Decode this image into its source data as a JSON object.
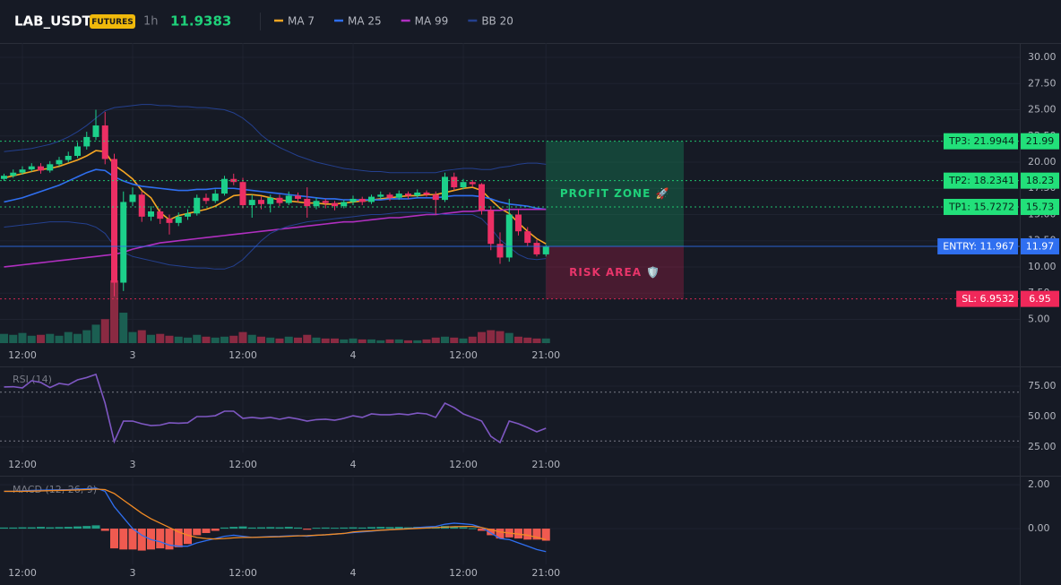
{
  "header": {
    "symbol": "LAB_USDT",
    "badge": "FUTURES",
    "interval": "1h",
    "price": 11.9383
  },
  "chart_data": [
    {
      "type": "candlestick",
      "categories": [
        null,
        null,
        "12:00",
        null,
        null,
        null,
        null,
        null,
        null,
        null,
        null,
        null,
        null,
        null,
        "3",
        null,
        null,
        null,
        null,
        null,
        null,
        null,
        null,
        null,
        null,
        null,
        "12:00",
        null,
        null,
        null,
        null,
        null,
        null,
        null,
        null,
        null,
        null,
        null,
        "4",
        null,
        null,
        null,
        null,
        null,
        null,
        null,
        null,
        null,
        null,
        null,
        "12:00",
        null,
        null,
        null,
        null,
        null,
        null,
        null,
        null,
        "21:00"
      ],
      "open": [
        18.4,
        18.7,
        19.0,
        19.3,
        19.6,
        19.2,
        19.8,
        20.2,
        20.6,
        21.5,
        22.4,
        23.5,
        20.3,
        8.5,
        16.2,
        16.9,
        14.8,
        15.3,
        14.6,
        14.2,
        14.8,
        15.1,
        16.6,
        16.3,
        17.0,
        18.4,
        18.1,
        15.9,
        16.4,
        16.0,
        16.6,
        16.1,
        16.8,
        16.5,
        15.8,
        16.3,
        16.1,
        15.8,
        16.2,
        16.5,
        16.2,
        16.7,
        16.9,
        16.6,
        17.0,
        16.8,
        17.1,
        16.9,
        16.4,
        18.6,
        17.6,
        18.1,
        17.9,
        15.4,
        12.2,
        10.9,
        15.0,
        13.4,
        12.3,
        11.2
      ],
      "high": [
        18.9,
        19.3,
        19.6,
        19.9,
        19.9,
        20.1,
        20.5,
        21.0,
        21.9,
        22.9,
        25.0,
        24.8,
        20.8,
        17.2,
        17.6,
        17.2,
        15.8,
        15.6,
        15.0,
        15.2,
        15.5,
        16.9,
        17.0,
        17.4,
        18.7,
        18.9,
        18.5,
        16.9,
        16.7,
        16.9,
        16.9,
        17.2,
        17.1,
        17.6,
        16.6,
        16.5,
        16.3,
        16.4,
        16.8,
        16.7,
        16.9,
        17.2,
        17.1,
        17.3,
        17.2,
        17.4,
        17.3,
        17.2,
        19.0,
        19.0,
        18.4,
        18.3,
        18.0,
        15.8,
        13.3,
        16.5,
        15.5,
        13.8,
        12.6,
        12.1
      ],
      "low": [
        18.2,
        18.5,
        18.8,
        19.1,
        18.9,
        19.0,
        19.6,
        20.0,
        20.4,
        21.2,
        22.1,
        19.8,
        7.2,
        7.7,
        15.8,
        14.3,
        14.4,
        14.1,
        13.1,
        13.9,
        14.5,
        14.9,
        16.0,
        16.1,
        16.8,
        17.8,
        15.6,
        14.7,
        15.5,
        15.2,
        15.8,
        15.9,
        16.2,
        14.7,
        15.5,
        15.6,
        15.4,
        15.6,
        15.9,
        15.9,
        16.0,
        16.5,
        16.3,
        16.4,
        16.5,
        16.6,
        16.7,
        15.0,
        16.2,
        17.3,
        17.4,
        17.6,
        15.0,
        11.6,
        10.3,
        10.5,
        13.0,
        12.0,
        11.0,
        11.0
      ],
      "close": [
        18.7,
        19.0,
        19.3,
        19.6,
        19.2,
        19.8,
        20.2,
        20.6,
        21.5,
        22.4,
        23.5,
        20.3,
        8.5,
        16.2,
        16.9,
        14.8,
        15.3,
        14.6,
        14.2,
        14.8,
        15.1,
        16.6,
        16.3,
        17.0,
        18.4,
        18.1,
        15.9,
        16.4,
        16.0,
        16.6,
        16.1,
        16.8,
        16.5,
        15.8,
        16.3,
        16.1,
        15.8,
        16.2,
        16.5,
        16.2,
        16.7,
        16.9,
        16.6,
        17.0,
        16.8,
        17.1,
        16.9,
        16.4,
        18.6,
        17.6,
        18.1,
        17.9,
        15.4,
        12.2,
        10.9,
        15.0,
        13.4,
        12.3,
        11.2,
        11.9383
      ],
      "volume": [
        10,
        9,
        11,
        8,
        9,
        10,
        8,
        12,
        10,
        14,
        20,
        26,
        68,
        33,
        12,
        14,
        9,
        10,
        8,
        7,
        6,
        9,
        7,
        6,
        7,
        8,
        12,
        9,
        7,
        6,
        5,
        7,
        6,
        9,
        6,
        5,
        5,
        4,
        5,
        4,
        4,
        3,
        4,
        4,
        3,
        3,
        4,
        6,
        7,
        6,
        5,
        7,
        12,
        14,
        13,
        11,
        7,
        6,
        5,
        5
      ],
      "up_color": "#1ccf8a",
      "down_color": "#ec2f64",
      "volume_up_color": "#1b5f52",
      "volume_down_color": "#8a2a42",
      "series": [
        {
          "name": "MA 7",
          "color": "#f5a623",
          "values": [
            18.5,
            18.7,
            18.9,
            19.1,
            19.3,
            19.4,
            19.6,
            19.9,
            20.2,
            20.6,
            21.1,
            21.0,
            19.7,
            19.1,
            18.4,
            17.3,
            16.6,
            15.2,
            14.5,
            14.9,
            15.1,
            15.3,
            15.5,
            15.8,
            16.3,
            16.8,
            16.9,
            16.9,
            16.8,
            16.6,
            16.4,
            16.3,
            16.2,
            16.1,
            16.1,
            16.0,
            16.0,
            16.1,
            16.2,
            16.3,
            16.4,
            16.5,
            16.6,
            16.7,
            16.8,
            16.8,
            16.9,
            16.9,
            17.1,
            17.3,
            17.5,
            17.6,
            17.3,
            16.4,
            15.6,
            15.1,
            14.2,
            13.4,
            12.7,
            12.2
          ]
        },
        {
          "name": "MA 25",
          "color": "#2f6ff0",
          "values": [
            16.2,
            16.4,
            16.6,
            16.9,
            17.2,
            17.5,
            17.8,
            18.2,
            18.6,
            19.0,
            19.3,
            19.2,
            18.6,
            18.2,
            17.9,
            17.7,
            17.6,
            17.5,
            17.4,
            17.3,
            17.3,
            17.4,
            17.4,
            17.5,
            17.5,
            17.5,
            17.4,
            17.3,
            17.2,
            17.1,
            17.0,
            16.9,
            16.8,
            16.7,
            16.6,
            16.5,
            16.5,
            16.4,
            16.4,
            16.4,
            16.4,
            16.4,
            16.5,
            16.5,
            16.5,
            16.6,
            16.6,
            16.6,
            16.7,
            16.8,
            16.8,
            16.8,
            16.7,
            16.5,
            16.2,
            16.0,
            15.9,
            15.8,
            15.6,
            15.5
          ]
        },
        {
          "name": "MA 99",
          "color": "#b02fc0",
          "values": [
            10.0,
            10.1,
            10.2,
            10.3,
            10.4,
            10.5,
            10.6,
            10.7,
            10.8,
            10.9,
            11.0,
            11.1,
            11.2,
            11.4,
            11.7,
            11.9,
            12.1,
            12.3,
            12.4,
            12.5,
            12.6,
            12.7,
            12.8,
            12.9,
            13.0,
            13.1,
            13.2,
            13.3,
            13.4,
            13.5,
            13.6,
            13.7,
            13.8,
            13.9,
            14.0,
            14.1,
            14.2,
            14.3,
            14.3,
            14.4,
            14.5,
            14.6,
            14.7,
            14.7,
            14.8,
            14.9,
            15.0,
            15.0,
            15.1,
            15.2,
            15.3,
            15.3,
            15.4,
            15.4,
            15.4,
            15.5,
            15.5,
            15.5,
            15.5,
            15.5
          ]
        },
        {
          "name": "BB 20",
          "color": "#24408f",
          "upper": [
            21.0,
            21.1,
            21.2,
            21.3,
            21.5,
            21.7,
            22.0,
            22.4,
            22.9,
            23.5,
            24.2,
            24.9,
            25.2,
            25.3,
            25.4,
            25.5,
            25.5,
            25.4,
            25.4,
            25.3,
            25.3,
            25.2,
            25.2,
            25.1,
            25.0,
            24.7,
            24.2,
            23.5,
            22.6,
            21.9,
            21.4,
            21.0,
            20.6,
            20.3,
            20.0,
            19.8,
            19.6,
            19.4,
            19.3,
            19.2,
            19.1,
            19.1,
            19.0,
            19.0,
            19.0,
            19.0,
            19.0,
            19.0,
            19.2,
            19.3,
            19.4,
            19.4,
            19.3,
            19.3,
            19.5,
            19.6,
            19.8,
            19.9,
            19.9,
            19.8
          ],
          "lower": [
            13.8,
            13.9,
            14.0,
            14.1,
            14.2,
            14.3,
            14.3,
            14.3,
            14.2,
            14.1,
            13.8,
            13.2,
            12.0,
            11.4,
            11.0,
            10.8,
            10.6,
            10.4,
            10.2,
            10.1,
            10.0,
            9.9,
            9.9,
            9.8,
            9.8,
            10.1,
            10.7,
            11.6,
            12.5,
            13.2,
            13.6,
            13.9,
            14.1,
            14.3,
            14.4,
            14.5,
            14.6,
            14.7,
            14.8,
            14.9,
            15.0,
            15.0,
            15.1,
            15.2,
            15.2,
            15.2,
            15.2,
            15.1,
            15.0,
            15.0,
            15.0,
            15.0,
            14.6,
            13.7,
            12.6,
            11.9,
            11.2,
            10.8,
            10.7,
            10.8
          ]
        }
      ],
      "levels": [
        {
          "label": "TP3: 21.9944",
          "value": 21.9944,
          "tag": "21.99",
          "color": "#22e07a",
          "text_color": "#08251a",
          "style": "dotted"
        },
        {
          "label": "TP2: 18.2341",
          "value": 18.2341,
          "tag": "18.23",
          "color": "#22e07a",
          "text_color": "#08251a",
          "style": "dotted"
        },
        {
          "label": "TP1: 15.7272",
          "value": 15.7272,
          "tag": "15.73",
          "color": "#22e07a",
          "text_color": "#08251a",
          "style": "dotted"
        },
        {
          "label": "ENTRY: 11.967",
          "value": 11.967,
          "tag": "11.97",
          "color": "#2f6ff0",
          "text_color": "#ffffff",
          "style": "solid"
        },
        {
          "label": "SL: 6.9532",
          "value": 6.9532,
          "tag": "6.95",
          "color": "#f0285a",
          "text_color": "#ffffff",
          "style": "dotted"
        }
      ],
      "zones": [
        {
          "label": "PROFIT ZONE 🚀",
          "top": 21.9944,
          "bottom": 11.967,
          "color": "#16a064",
          "text_color": "#1fd17a"
        },
        {
          "label": "RISK AREA 🛡️",
          "top": 11.967,
          "bottom": 6.9532,
          "color": "#b41e46",
          "text_color": "#e8356a"
        }
      ],
      "ylim": [
        2.56,
        31.37
      ],
      "yticks": [
        {
          "value": 5,
          "label": "5.00"
        },
        {
          "value": 7.5,
          "label": "7.50"
        },
        {
          "value": 10,
          "label": "10.00"
        },
        {
          "value": 12.5,
          "label": "12.50"
        },
        {
          "value": 15,
          "label": "15.00"
        },
        {
          "value": 17.5,
          "label": "17.50"
        },
        {
          "value": 20,
          "label": "20.00"
        },
        {
          "value": 22.5,
          "label": "22.50"
        },
        {
          "value": 25,
          "label": "25.00"
        },
        {
          "value": 27.5,
          "label": "27.50"
        },
        {
          "value": 30,
          "label": "30.00"
        }
      ],
      "grid": true
    },
    {
      "type": "line",
      "title": "RSI (14)",
      "color": "#7e57c2",
      "values": [
        74.3,
        74.5,
        73.5,
        79.4,
        78,
        73.8,
        77.2,
        76,
        80.1,
        82,
        84.6,
        61.0,
        29.4,
        46.3,
        46.3,
        44.1,
        42.6,
        43,
        44.9,
        44.5,
        44.9,
        50,
        50,
        50.7,
        54.4,
        54.4,
        48.5,
        49.3,
        48.5,
        49.3,
        47.8,
        49.3,
        48,
        46.3,
        47.5,
        47.8,
        47,
        48.5,
        50.7,
        49.3,
        52.2,
        51.5,
        51.5,
        52.2,
        51.5,
        52.9,
        52.2,
        49.3,
        61.0,
        57.4,
        52.2,
        49.3,
        46.3,
        33.8,
        28.7,
        46.3,
        44.1,
        41,
        37.5,
        40.4
      ],
      "guides": [
        70,
        30
      ],
      "ylim": [
        20.6,
        90.4
      ],
      "yticks": [
        {
          "value": 25,
          "label": "25.00"
        },
        {
          "value": 50,
          "label": "50.00"
        },
        {
          "value": 75,
          "label": "75.00"
        }
      ],
      "grid": true
    },
    {
      "type": "macd",
      "title": "MACD (12, 26, 9)",
      "macd": [
        1.7,
        1.7,
        1.72,
        1.74,
        1.75,
        1.76,
        1.77,
        1.78,
        1.8,
        1.82,
        1.85,
        1.7,
        1.0,
        0.5,
        0.0,
        -0.3,
        -0.5,
        -0.6,
        -0.75,
        -0.8,
        -0.8,
        -0.65,
        -0.55,
        -0.45,
        -0.35,
        -0.3,
        -0.35,
        -0.4,
        -0.38,
        -0.36,
        -0.35,
        -0.33,
        -0.32,
        -0.35,
        -0.3,
        -0.28,
        -0.25,
        -0.22,
        -0.18,
        -0.15,
        -0.12,
        -0.08,
        -0.05,
        -0.02,
        0.0,
        0.05,
        0.08,
        0.1,
        0.2,
        0.25,
        0.22,
        0.18,
        0.05,
        -0.2,
        -0.45,
        -0.5,
        -0.65,
        -0.8,
        -0.95,
        -1.05
      ],
      "signal": [
        1.7,
        1.7,
        1.7,
        1.71,
        1.72,
        1.73,
        1.74,
        1.75,
        1.76,
        1.78,
        1.8,
        1.78,
        1.6,
        1.3,
        1.0,
        0.7,
        0.45,
        0.25,
        0.05,
        -0.15,
        -0.3,
        -0.4,
        -0.45,
        -0.47,
        -0.45,
        -0.42,
        -0.4,
        -0.4,
        -0.39,
        -0.38,
        -0.37,
        -0.35,
        -0.33,
        -0.32,
        -0.3,
        -0.28,
        -0.25,
        -0.22,
        -0.15,
        -0.12,
        -0.1,
        -0.07,
        -0.05,
        -0.03,
        -0.01,
        0.01,
        0.03,
        0.05,
        0.07,
        0.09,
        0.1,
        0.1,
        0.05,
        -0.05,
        -0.15,
        -0.2,
        -0.25,
        -0.3,
        -0.4,
        -0.5
      ],
      "histogram": [
        0.05,
        0.05,
        0.06,
        0.06,
        0.08,
        0.06,
        0.07,
        0.08,
        0.1,
        0.12,
        0.15,
        -0.1,
        -0.9,
        -0.95,
        -0.95,
        -1.0,
        -0.95,
        -0.9,
        -0.95,
        -0.85,
        -0.7,
        -0.3,
        -0.2,
        -0.1,
        0.05,
        0.08,
        0.1,
        0.05,
        0.06,
        0.07,
        0.06,
        0.08,
        0.05,
        -0.05,
        0.04,
        0.05,
        0.04,
        0.05,
        0.06,
        0.05,
        0.07,
        0.08,
        0.07,
        0.08,
        0.06,
        0.08,
        0.07,
        0.05,
        0.12,
        0.1,
        0.06,
        0.02,
        -0.1,
        -0.3,
        -0.45,
        -0.4,
        -0.45,
        -0.5,
        -0.5,
        -0.55
      ],
      "macd_color": "#2f6ff0",
      "signal_color": "#f08a24",
      "positive_color": "#1f9c83",
      "negative_color": "#f05a50",
      "ylim": [
        -1.63,
        2.33
      ],
      "yticks": [
        {
          "value": 0,
          "label": "0.00"
        },
        {
          "value": 2,
          "label": "2.00"
        }
      ],
      "grid": true
    }
  ]
}
